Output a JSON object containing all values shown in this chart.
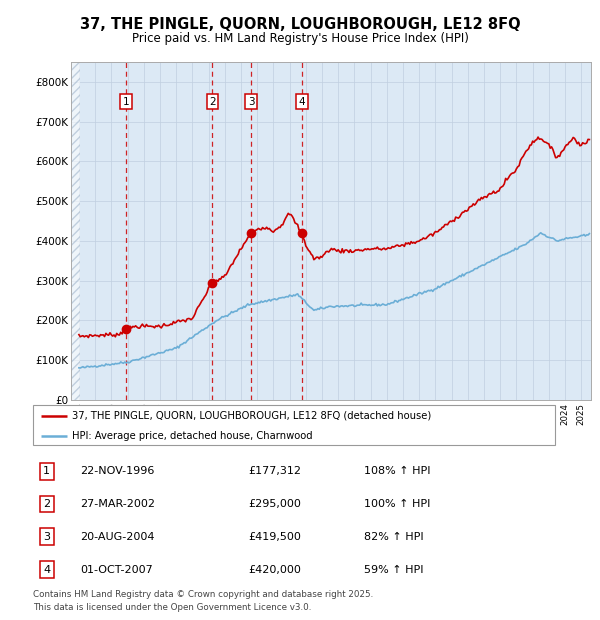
{
  "title": "37, THE PINGLE, QUORN, LOUGHBOROUGH, LE12 8FQ",
  "subtitle": "Price paid vs. HM Land Registry's House Price Index (HPI)",
  "legend_line1": "37, THE PINGLE, QUORN, LOUGHBOROUGH, LE12 8FQ (detached house)",
  "legend_line2": "HPI: Average price, detached house, Charnwood",
  "footer": "Contains HM Land Registry data © Crown copyright and database right 2025.\nThis data is licensed under the Open Government Licence v3.0.",
  "transactions": [
    {
      "num": 1,
      "date": "22-NOV-1996",
      "date_x": 1996.896,
      "price": 177312,
      "pct": "108%",
      "dir": "↑"
    },
    {
      "num": 2,
      "date": "27-MAR-2002",
      "date_x": 2002.24,
      "price": 295000,
      "pct": "100%",
      "dir": "↑"
    },
    {
      "num": 3,
      "date": "20-AUG-2004",
      "date_x": 2004.636,
      "price": 419500,
      "pct": "82%",
      "dir": "↑"
    },
    {
      "num": 4,
      "date": "01-OCT-2007",
      "date_x": 2007.748,
      "price": 420000,
      "pct": "59%",
      "dir": "↑"
    }
  ],
  "hpi_color": "#6baed6",
  "sale_color": "#cc0000",
  "dashed_color": "#cc0000",
  "grid_color": "#c0cfe0",
  "bg_color": "#dce9f5",
  "ylim": [
    0,
    850000
  ],
  "yticks": [
    0,
    100000,
    200000,
    300000,
    400000,
    500000,
    600000,
    700000,
    800000
  ],
  "xlim_start": 1993.5,
  "xlim_end": 2025.6,
  "hpi_anchors": {
    "1994.0": 80000,
    "1997.0": 95000,
    "2000.0": 130000,
    "2002.5": 200000,
    "2004.5": 240000,
    "2007.5": 265000,
    "2008.5": 225000,
    "2009.5": 235000,
    "2013.0": 240000,
    "2016.0": 280000,
    "2019.0": 340000,
    "2021.5": 390000,
    "2022.5": 420000,
    "2023.5": 400000,
    "2024.0": 405000,
    "2025.5": 415000
  },
  "sale_anchors": {
    "1994.0": 160000,
    "1996.5": 165000,
    "1996.9": 177312,
    "1997.5": 185000,
    "1999.0": 185000,
    "2001.0": 205000,
    "2002.24": 295000,
    "2003.0": 310000,
    "2004.0": 380000,
    "2004.636": 419500,
    "2005.0": 430000,
    "2005.5": 435000,
    "2006.0": 425000,
    "2006.5": 440000,
    "2007.0": 470000,
    "2007.748": 420000,
    "2008.0": 390000,
    "2008.5": 355000,
    "2009.0": 360000,
    "2009.5": 380000,
    "2010.0": 375000,
    "2011.0": 375000,
    "2012.0": 380000,
    "2013.0": 380000,
    "2014.0": 390000,
    "2015.0": 400000,
    "2016.0": 420000,
    "2017.0": 450000,
    "2018.0": 480000,
    "2019.0": 510000,
    "2020.0": 530000,
    "2020.5": 560000,
    "2021.0": 580000,
    "2021.5": 620000,
    "2022.0": 650000,
    "2022.5": 660000,
    "2023.0": 640000,
    "2023.5": 610000,
    "2024.0": 635000,
    "2024.5": 660000,
    "2025.0": 640000,
    "2025.5": 655000
  }
}
